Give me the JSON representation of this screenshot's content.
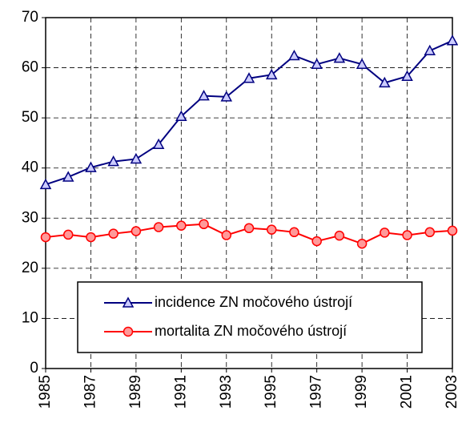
{
  "chart_data": {
    "type": "line",
    "x": [
      1985,
      1986,
      1987,
      1988,
      1989,
      1990,
      1991,
      1992,
      1993,
      1994,
      1995,
      1996,
      1997,
      1998,
      1999,
      2000,
      2001,
      2002,
      2003
    ],
    "xlim": [
      1985,
      2003
    ],
    "xticks": [
      1985,
      1987,
      1989,
      1991,
      1993,
      1995,
      1997,
      1999,
      2001,
      2003
    ],
    "ylim": [
      0,
      70
    ],
    "yticks": [
      0,
      10,
      20,
      30,
      40,
      50,
      60,
      70
    ],
    "grid": true,
    "series": [
      {
        "name": "incidence ZN močového ústrojí",
        "color": "#000080",
        "marker": "triangle",
        "values": [
          36.7,
          38.2,
          40.1,
          41.3,
          41.8,
          44.7,
          50.3,
          54.4,
          54.2,
          57.9,
          58.6,
          62.4,
          60.7,
          61.9,
          60.7,
          57.0,
          58.3,
          63.4,
          65.4
        ]
      },
      {
        "name": "mortalita ZN močového ústrojí",
        "color": "#ff0000",
        "marker": "circle",
        "values": [
          26.2,
          26.7,
          26.2,
          26.9,
          27.4,
          28.2,
          28.5,
          28.8,
          26.6,
          28.0,
          27.7,
          27.2,
          25.4,
          26.5,
          24.9,
          27.1,
          26.6,
          27.2,
          27.5
        ]
      }
    ]
  }
}
